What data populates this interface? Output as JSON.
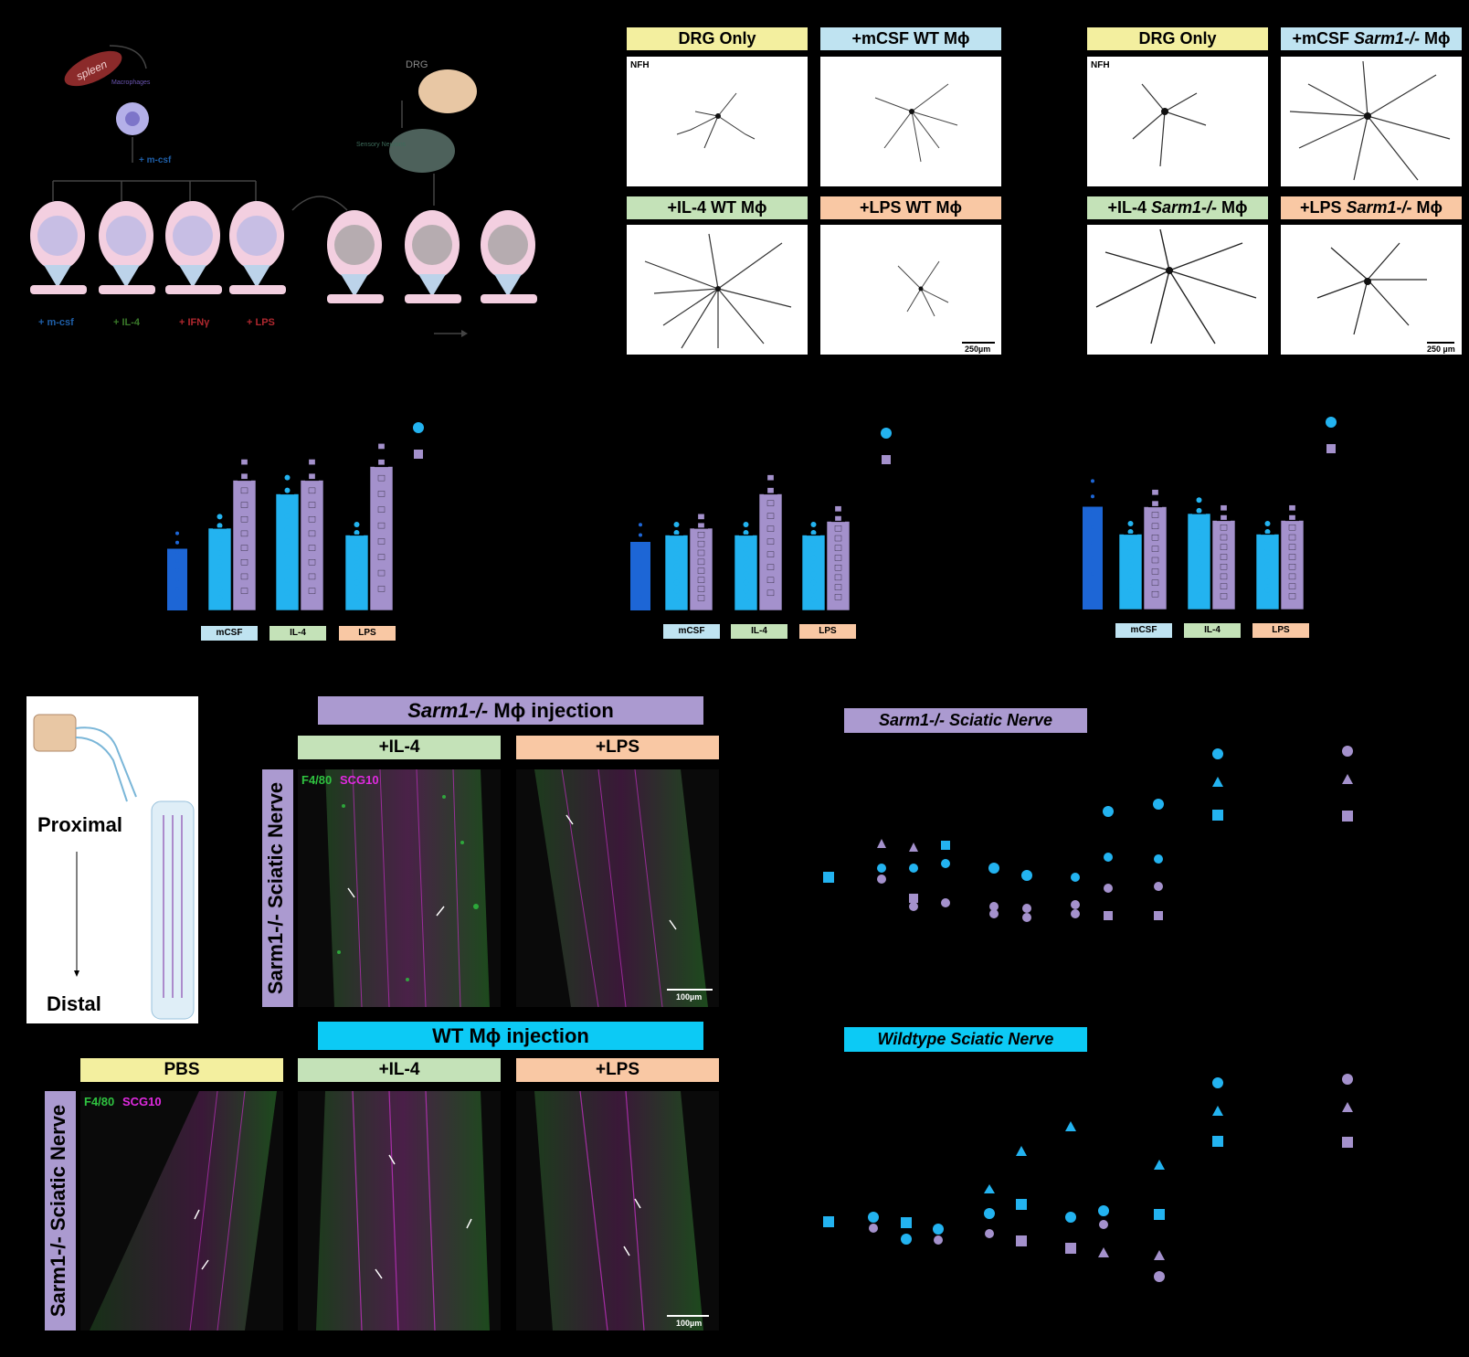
{
  "schematic": {
    "spleen": "spleen",
    "macrophages": "Macrophages",
    "mcsf_top": "+ m-csf",
    "drg": "DRG",
    "sensory_neurons": "Sensory Neurons",
    "conditions": [
      "+ m-csf",
      "+ IL-4",
      "+ IFNγ",
      "+ LPS"
    ],
    "condition_colors": [
      "#1f5fa8",
      "#3a7a2a",
      "#b0282f",
      "#b0282f"
    ]
  },
  "wt_panel": {
    "labels": [
      "DRG Only",
      "+mCSF WT Mϕ",
      "+IL-4 WT Mϕ",
      "+LPS WT Mϕ"
    ],
    "stain": "NFH",
    "scale": "250µm"
  },
  "sarm_panel": {
    "labels_plain": [
      "DRG Only",
      "+mCSF ",
      "+IL-4 ",
      "+LPS "
    ],
    "labels_italic": [
      "",
      "Sarm1-/-",
      "Sarm1-/-",
      "Sarm1-/-"
    ],
    "labels_tail": [
      "",
      " Mϕ",
      " Mϕ",
      " Mϕ"
    ],
    "stain": "NFH",
    "scale": "250 µm"
  },
  "colors": {
    "yellow": "#f3ef9f",
    "blue": "#bfe3f1",
    "green": "#c4e2b8",
    "orange": "#f9c8a4",
    "purple": "#ab9ad0",
    "cyan": "#0ccaf5",
    "series_wt": "#23b3f0",
    "series_sarm": "#a491cc",
    "drg_only": "#1d66d6"
  },
  "chart_data": [
    {
      "type": "bar",
      "categories": [
        "mCSF",
        "IL-4",
        "LPS"
      ],
      "series": [
        {
          "values": [
            0.6,
            0.85,
            0.55
          ]
        },
        {
          "values": [
            0.95,
            0.95,
            1.05
          ]
        }
      ],
      "control": 0.45
    },
    {
      "type": "bar",
      "categories": [
        "mCSF",
        "IL-4",
        "LPS"
      ],
      "series": [
        {
          "values": [
            0.55,
            0.55,
            0.55
          ]
        },
        {
          "values": [
            0.6,
            0.85,
            0.65
          ]
        }
      ],
      "control": 0.5
    },
    {
      "type": "bar",
      "categories": [
        "mCSF",
        "IL-4",
        "LPS"
      ],
      "series": [
        {
          "values": [
            0.55,
            0.7,
            0.55
          ]
        },
        {
          "values": [
            0.75,
            0.65,
            0.65
          ]
        }
      ],
      "control": 0.75
    }
  ],
  "nerve_diagram": {
    "proximal": "Proximal",
    "distal": "Distal"
  },
  "injection_sarm": {
    "title_italic": "Sarm1-/-",
    "title_tail": " Mϕ injection",
    "conditions": [
      "+IL-4",
      "+LPS"
    ],
    "side_label": "Sarm1-/- Sciatic Nerve",
    "stain_green": "F4/80",
    "stain_magenta": "SCG10",
    "scale": "100µm"
  },
  "injection_wt": {
    "title": "WT Mϕ injection",
    "conditions": [
      "PBS",
      "+IL-4",
      "+LPS"
    ],
    "side_label": "Sarm1-/- Sciatic Nerve",
    "stain_green": "F4/80",
    "stain_magenta": "SCG10",
    "scale": "100µm"
  },
  "plot_titles": {
    "sarm_nerve": "Sarm1-/- Sciatic Nerve",
    "wt_nerve": "Wildtype Sciatic Nerve"
  }
}
